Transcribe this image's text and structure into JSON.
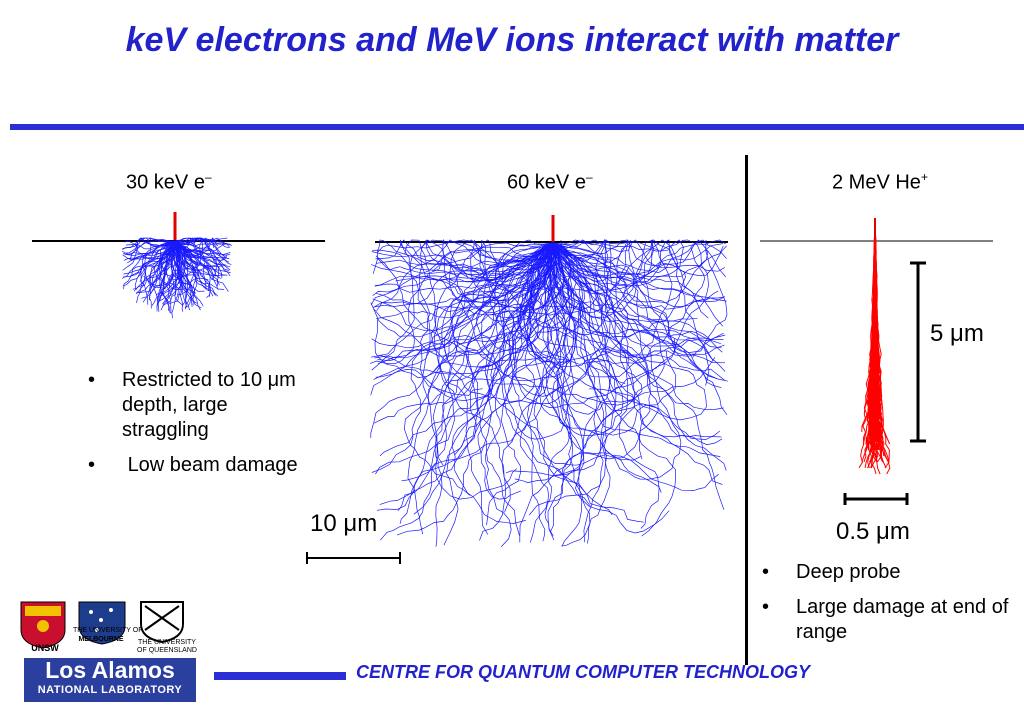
{
  "slide": {
    "title": "keV electrons and MeV ions interact with matter"
  },
  "panels": {
    "p30": {
      "label": "30 keV e",
      "sup": "–"
    },
    "p60": {
      "label": "60 keV e",
      "sup": "–"
    },
    "phe": {
      "label": "2 MeV He",
      "sup": "+"
    }
  },
  "left_bullets": [
    "Restricted to 10 μm depth, large straggling",
    " Low beam damage"
  ],
  "right_bullets": [
    "Deep probe",
    "Large damage at end of range"
  ],
  "scale_bars": {
    "electron": "10 μm",
    "ion_depth": "5 μm",
    "ion_width": "0.5 μm"
  },
  "bullet_symbol": "•",
  "footer": {
    "centre": "CENTRE FOR QUANTUM COMPUTER TECHNOLOGY",
    "lab_name": "Los Alamos",
    "lab_sub": "NATIONAL LABORATORY",
    "unsw": "UNSW",
    "melbourne_1": "THE UNIVERSITY OF",
    "melbourne_2": "MELBOURNE",
    "queensland_1": "THE UNIVERSITY",
    "queensland_2": "OF QUEENSLAND"
  },
  "colors": {
    "title": "#2222cc",
    "rule": "#2d2dd6",
    "electron_tracks": "#1a1aff",
    "ion_tracks": "#ff0000",
    "beam": "#e00000"
  }
}
